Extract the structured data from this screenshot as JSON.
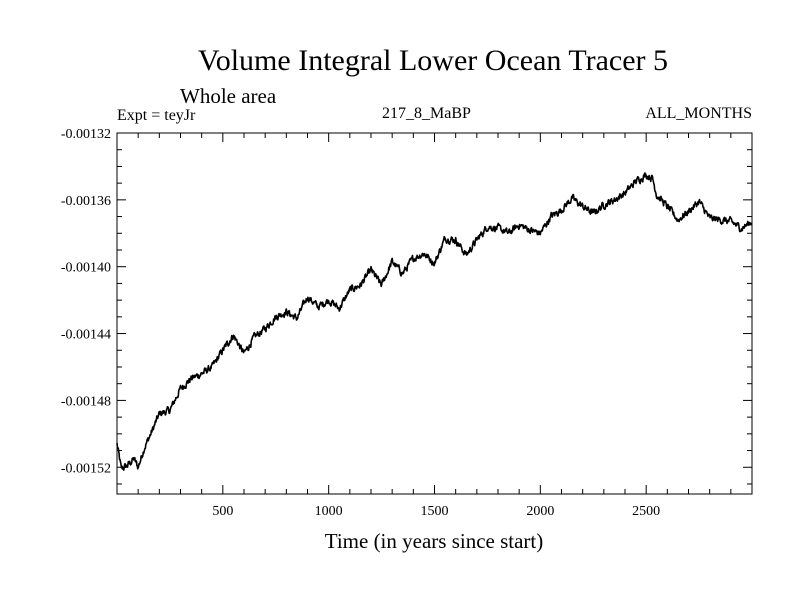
{
  "chart_data": {
    "type": "line",
    "title": "Volume Integral Lower Ocean Tracer 5",
    "subtitle": "Whole area",
    "expt_label": "Expt = teyJr",
    "run_label": "217_8_MaBP",
    "period_label": "ALL_MONTHS",
    "xlabel": "Time (in years since start)",
    "ylabel": "",
    "xlim": [
      0,
      3000
    ],
    "ylim": [
      -0.001536,
      -0.00132
    ],
    "x_ticks": [
      500,
      1000,
      1500,
      2000,
      2500
    ],
    "x_tick_labels": [
      "500",
      "1000",
      "1500",
      "2000",
      "2500"
    ],
    "y_ticks": [
      -0.00132,
      -0.00136,
      -0.0014,
      -0.00144,
      -0.00148,
      -0.00152
    ],
    "y_tick_labels": [
      "-0.00132",
      "-0.00136",
      "-0.00140",
      "-0.00144",
      "-0.00148",
      "-0.00152"
    ],
    "series": [
      {
        "name": "Volume Integral Lower Ocean Tracer 5",
        "color": "#000000",
        "x": [
          0,
          20,
          50,
          80,
          100,
          130,
          160,
          200,
          250,
          300,
          350,
          400,
          450,
          500,
          550,
          600,
          650,
          700,
          750,
          800,
          850,
          900,
          950,
          1000,
          1050,
          1100,
          1150,
          1200,
          1250,
          1300,
          1350,
          1400,
          1450,
          1500,
          1550,
          1600,
          1650,
          1700,
          1750,
          1800,
          1850,
          1900,
          1950,
          2000,
          2050,
          2100,
          2150,
          2200,
          2250,
          2300,
          2350,
          2400,
          2450,
          2500,
          2530,
          2550,
          2600,
          2650,
          2700,
          2750,
          2800,
          2850,
          2900,
          2950,
          3000
        ],
        "values": [
          -0.001506,
          -0.001521,
          -0.001519,
          -0.001515,
          -0.00152,
          -0.001508,
          -0.0015,
          -0.001488,
          -0.001486,
          -0.001473,
          -0.001467,
          -0.001464,
          -0.00146,
          -0.00145,
          -0.001441,
          -0.001452,
          -0.001442,
          -0.001437,
          -0.00143,
          -0.001427,
          -0.001431,
          -0.001418,
          -0.001424,
          -0.00142,
          -0.001425,
          -0.001414,
          -0.001411,
          -0.001402,
          -0.001411,
          -0.001397,
          -0.001404,
          -0.001395,
          -0.001392,
          -0.001398,
          -0.001383,
          -0.001384,
          -0.001393,
          -0.001384,
          -0.001376,
          -0.001377,
          -0.00138,
          -0.001375,
          -0.001378,
          -0.00138,
          -0.00137,
          -0.001366,
          -0.001359,
          -0.001364,
          -0.001368,
          -0.001363,
          -0.00136,
          -0.001356,
          -0.001349,
          -0.001345,
          -0.001347,
          -0.001357,
          -0.001364,
          -0.001372,
          -0.001367,
          -0.001361,
          -0.001371,
          -0.001372,
          -0.001373,
          -0.001377,
          -0.001373
        ]
      }
    ]
  }
}
